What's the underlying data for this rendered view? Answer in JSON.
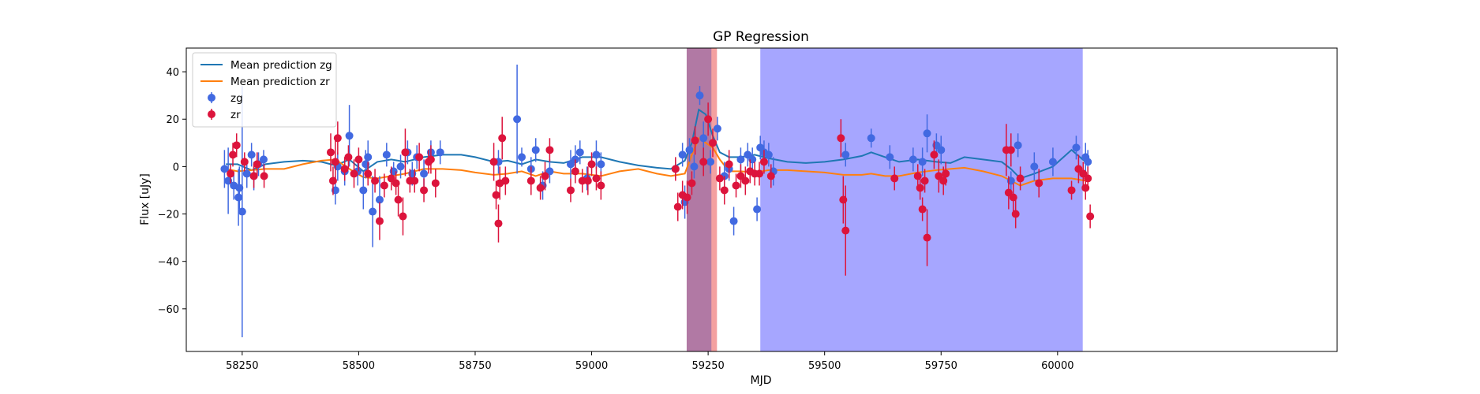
{
  "chart_data": {
    "type": "scatter",
    "title": "GP Regression",
    "xlabel": "MJD",
    "ylabel": "Flux [uJy]",
    "xlim": [
      58130,
      60600
    ],
    "ylim": [
      -78,
      50
    ],
    "x_ticks": [
      58250,
      58500,
      58750,
      59000,
      59250,
      59500,
      59750,
      60000
    ],
    "y_ticks": [
      -60,
      -40,
      -20,
      0,
      20,
      40
    ],
    "grid": false,
    "legend": {
      "placement": "top-left",
      "entries": [
        {
          "label": "Mean prediction zg",
          "kind": "line",
          "color": "#1f77b4"
        },
        {
          "label": "Mean prediction zr",
          "kind": "line",
          "color": "#ff7f0e"
        },
        {
          "label": "zg",
          "kind": "errorbar",
          "color": "#4169e1"
        },
        {
          "label": "zr",
          "kind": "errorbar",
          "color": "#dc143c"
        }
      ]
    },
    "shaded_regions": [
      {
        "x0": 59362,
        "x1": 60054,
        "color": "#6a6aff",
        "opacity": 0.6
      },
      {
        "x0": 59204,
        "x1": 59269,
        "color": "#f08080",
        "opacity": 0.75
      },
      {
        "x0": 59204,
        "x1": 59257,
        "color": "#7a5aa8",
        "opacity": 0.55
      }
    ],
    "series": [
      {
        "name": "Mean prediction zg",
        "kind": "line",
        "color": "#1f77b4",
        "x": [
          58215,
          58240,
          58270,
          58300,
          58340,
          58380,
          58420,
          58450,
          58480,
          58510,
          58540,
          58570,
          58600,
          58640,
          58680,
          58720,
          58750,
          58790,
          58820,
          58850,
          58880,
          58910,
          58940,
          58980,
          59020,
          59060,
          59100,
          59140,
          59170,
          59200,
          59215,
          59230,
          59245,
          59260,
          59275,
          59295,
          59320,
          59350,
          59380,
          59420,
          59460,
          59500,
          59540,
          59580,
          59600,
          59630,
          59660,
          59700,
          59740,
          59770,
          59800,
          59840,
          59880,
          59900,
          59920,
          59950,
          59990,
          60030,
          60060
        ],
        "y": [
          1,
          1,
          -1.5,
          1,
          2,
          2.5,
          2,
          0.5,
          3,
          -2,
          2,
          3,
          2,
          4,
          5,
          5,
          4,
          2,
          2.5,
          1,
          3,
          2,
          1.5,
          4,
          4,
          2,
          0.5,
          -0.5,
          -1,
          2.5,
          10,
          24,
          22,
          13,
          6,
          4,
          4,
          5,
          3.5,
          2,
          1.5,
          2,
          3,
          4.5,
          6,
          4,
          2,
          3,
          2,
          1.5,
          4,
          3,
          2,
          -1,
          -5,
          -3,
          0,
          7,
          2
        ]
      },
      {
        "name": "Mean prediction zr",
        "kind": "line",
        "color": "#ff7f0e",
        "x": [
          58215,
          58240,
          58270,
          58300,
          58340,
          58380,
          58420,
          58450,
          58480,
          58510,
          58540,
          58570,
          58600,
          58640,
          58680,
          58720,
          58750,
          58790,
          58820,
          58850,
          58880,
          58910,
          58940,
          58980,
          59020,
          59060,
          59100,
          59140,
          59170,
          59200,
          59215,
          59230,
          59245,
          59260,
          59275,
          59295,
          59320,
          59350,
          59380,
          59420,
          59460,
          59500,
          59540,
          59580,
          59600,
          59630,
          59660,
          59700,
          59740,
          59770,
          59800,
          59840,
          59880,
          59900,
          59920,
          59950,
          59990,
          60030,
          60060
        ],
        "y": [
          -1,
          -2,
          -1.5,
          -1,
          -1,
          1,
          2.5,
          3,
          -1,
          -4.5,
          -5,
          -4,
          -3,
          -1,
          -1,
          -1.5,
          -2.5,
          -3.5,
          -3,
          -2,
          -4,
          -2,
          -3,
          -3,
          -4,
          -2,
          -1,
          -3,
          -4,
          -3,
          5,
          12,
          10,
          8,
          3,
          -2,
          -2,
          -2.5,
          -1.5,
          -1.5,
          -2,
          -2.5,
          -3.5,
          -3.5,
          -3,
          -4,
          -4,
          -2.5,
          -1.5,
          -1,
          -0.5,
          -2,
          -4,
          -6,
          -8,
          -6,
          -5,
          -5,
          -6
        ]
      },
      {
        "name": "zg",
        "kind": "errorbar",
        "color": "#4169e1",
        "points": [
          [
            58212,
            -1,
            8
          ],
          [
            58220,
            -6,
            14
          ],
          [
            58232,
            -8,
            6
          ],
          [
            58242,
            -13,
            12
          ],
          [
            58244,
            -9,
            9
          ],
          [
            58250,
            -19,
            53
          ],
          [
            58260,
            -3,
            6
          ],
          [
            58270,
            5,
            5
          ],
          [
            58275,
            -4,
            6
          ],
          [
            58285,
            1,
            5
          ],
          [
            58296,
            3,
            4
          ],
          [
            58450,
            -10,
            6
          ],
          [
            58455,
            0,
            6
          ],
          [
            58470,
            -2,
            6
          ],
          [
            58480,
            13,
            13
          ],
          [
            58498,
            -2,
            6
          ],
          [
            58510,
            -10,
            8
          ],
          [
            58515,
            1,
            6
          ],
          [
            58520,
            4,
            7
          ],
          [
            58530,
            -19,
            15
          ],
          [
            58545,
            -14,
            10
          ],
          [
            58560,
            5,
            5
          ],
          [
            58575,
            -2,
            4
          ],
          [
            58590,
            0,
            5
          ],
          [
            58605,
            6,
            5
          ],
          [
            58615,
            -3,
            5
          ],
          [
            58625,
            4,
            5
          ],
          [
            58640,
            -3,
            6
          ],
          [
            58655,
            6,
            5
          ],
          [
            58675,
            6,
            5
          ],
          [
            58800,
            2,
            5
          ],
          [
            58840,
            20,
            23
          ],
          [
            58850,
            4,
            4
          ],
          [
            58870,
            -1,
            5
          ],
          [
            58880,
            7,
            5
          ],
          [
            58895,
            -8,
            6
          ],
          [
            58910,
            -2,
            5
          ],
          [
            58955,
            1,
            6
          ],
          [
            58965,
            3,
            6
          ],
          [
            58975,
            6,
            5
          ],
          [
            58990,
            -5,
            5
          ],
          [
            59010,
            5,
            6
          ],
          [
            59020,
            1,
            5
          ],
          [
            59180,
            -1,
            4
          ],
          [
            59195,
            5,
            5
          ],
          [
            59200,
            -15,
            7
          ],
          [
            59210,
            7,
            5
          ],
          [
            59220,
            0,
            5
          ],
          [
            59232,
            30,
            4
          ],
          [
            59240,
            12,
            7
          ],
          [
            59255,
            2,
            5
          ],
          [
            59270,
            16,
            5
          ],
          [
            59285,
            -4,
            6
          ],
          [
            59295,
            -1,
            5
          ],
          [
            59305,
            -23,
            6
          ],
          [
            59320,
            3,
            5
          ],
          [
            59335,
            5,
            5
          ],
          [
            59345,
            3,
            5
          ],
          [
            59355,
            -18,
            5
          ],
          [
            59362,
            8,
            5
          ],
          [
            59370,
            6,
            5
          ],
          [
            59380,
            5,
            5
          ],
          [
            59390,
            -2,
            6
          ],
          [
            59545,
            5,
            5
          ],
          [
            59600,
            12,
            4
          ],
          [
            59640,
            4,
            5
          ],
          [
            59690,
            3,
            5
          ],
          [
            59710,
            2,
            6
          ],
          [
            59720,
            14,
            8
          ],
          [
            59740,
            9,
            5
          ],
          [
            59750,
            7,
            6
          ],
          [
            59900,
            -6,
            4
          ],
          [
            59915,
            9,
            5
          ],
          [
            59950,
            0,
            6
          ],
          [
            59990,
            2,
            6
          ],
          [
            60040,
            8,
            5
          ],
          [
            60060,
            4,
            6
          ],
          [
            60065,
            2,
            5
          ]
        ]
      },
      {
        "name": "zr",
        "kind": "errorbar",
        "color": "#dc143c",
        "points": [
          [
            58225,
            -3,
            4
          ],
          [
            58230,
            5,
            5
          ],
          [
            58238,
            9,
            5
          ],
          [
            58255,
            2,
            4
          ],
          [
            58275,
            -4,
            5
          ],
          [
            58282,
            1,
            5
          ],
          [
            58297,
            -4,
            5
          ],
          [
            58440,
            6,
            8
          ],
          [
            58445,
            -6,
            6
          ],
          [
            58450,
            2,
            9
          ],
          [
            58455,
            12,
            7
          ],
          [
            58470,
            -1,
            5
          ],
          [
            58478,
            4,
            5
          ],
          [
            58490,
            -3,
            6
          ],
          [
            58500,
            3,
            5
          ],
          [
            58520,
            -3,
            5
          ],
          [
            58535,
            -6,
            5
          ],
          [
            58545,
            -23,
            8
          ],
          [
            58555,
            -8,
            5
          ],
          [
            58570,
            -5,
            5
          ],
          [
            58580,
            -7,
            5
          ],
          [
            58585,
            -14,
            7
          ],
          [
            58595,
            -21,
            8
          ],
          [
            58600,
            6,
            10
          ],
          [
            58610,
            -6,
            5
          ],
          [
            58620,
            -6,
            5
          ],
          [
            58630,
            4,
            6
          ],
          [
            58640,
            -10,
            5
          ],
          [
            58650,
            2,
            5
          ],
          [
            58655,
            3,
            6
          ],
          [
            58665,
            -7,
            6
          ],
          [
            58790,
            2,
            8
          ],
          [
            58795,
            -12,
            6
          ],
          [
            58800,
            -24,
            8
          ],
          [
            58803,
            -7,
            7
          ],
          [
            58808,
            12,
            9
          ],
          [
            58815,
            -6,
            6
          ],
          [
            58870,
            -6,
            6
          ],
          [
            58890,
            -9,
            5
          ],
          [
            58900,
            -4,
            6
          ],
          [
            58910,
            7,
            5
          ],
          [
            58955,
            -10,
            5
          ],
          [
            58965,
            -2,
            5
          ],
          [
            58980,
            -6,
            5
          ],
          [
            58992,
            -6,
            6
          ],
          [
            59000,
            1,
            5
          ],
          [
            59010,
            -5,
            5
          ],
          [
            59020,
            -8,
            6
          ],
          [
            59180,
            -1,
            5
          ],
          [
            59185,
            -17,
            6
          ],
          [
            59195,
            -12,
            6
          ],
          [
            59205,
            -13,
            7
          ],
          [
            59215,
            -7,
            5
          ],
          [
            59222,
            11,
            6
          ],
          [
            59240,
            2,
            6
          ],
          [
            59250,
            20,
            7
          ],
          [
            59260,
            10,
            6
          ],
          [
            59275,
            -5,
            5
          ],
          [
            59285,
            -10,
            6
          ],
          [
            59295,
            1,
            6
          ],
          [
            59310,
            -8,
            5
          ],
          [
            59320,
            -4,
            5
          ],
          [
            59330,
            -6,
            6
          ],
          [
            59340,
            -2,
            5
          ],
          [
            59350,
            -3,
            5
          ],
          [
            59360,
            -3,
            5
          ],
          [
            59370,
            2,
            5
          ],
          [
            59385,
            -4,
            5
          ],
          [
            59535,
            12,
            8
          ],
          [
            59540,
            -14,
            10
          ],
          [
            59545,
            -27,
            19
          ],
          [
            59650,
            -5,
            5
          ],
          [
            59700,
            -4,
            5
          ],
          [
            59705,
            -9,
            5
          ],
          [
            59710,
            -18,
            5
          ],
          [
            59715,
            -6,
            5
          ],
          [
            59720,
            -30,
            12
          ],
          [
            59735,
            5,
            6
          ],
          [
            59745,
            -4,
            7
          ],
          [
            59755,
            -6,
            6
          ],
          [
            59760,
            -3,
            5
          ],
          [
            59890,
            7,
            11
          ],
          [
            59895,
            -11,
            7
          ],
          [
            59900,
            7,
            7
          ],
          [
            59905,
            -13,
            6
          ],
          [
            59910,
            -20,
            6
          ],
          [
            59920,
            -5,
            5
          ],
          [
            59960,
            -7,
            6
          ],
          [
            60030,
            -10,
            4
          ],
          [
            60045,
            -1,
            6
          ],
          [
            60055,
            -3,
            5
          ],
          [
            60060,
            -9,
            5
          ],
          [
            60065,
            -5,
            5
          ],
          [
            60070,
            -21,
            5
          ]
        ]
      }
    ]
  }
}
